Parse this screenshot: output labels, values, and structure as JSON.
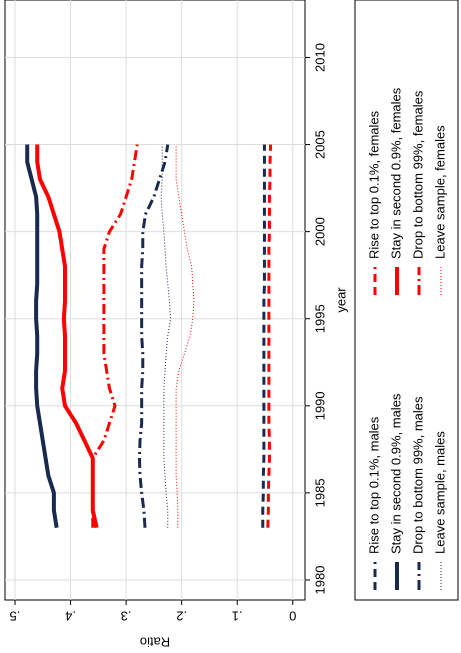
{
  "chart_data": {
    "type": "line",
    "x_label": "year",
    "y_label": "Ratio",
    "x": [
      1983,
      1984,
      1985,
      1986,
      1987,
      1988,
      1989,
      1990,
      1991,
      1992,
      1993,
      1994,
      1995,
      1996,
      1997,
      1998,
      1999,
      2000,
      2001,
      2002,
      2003,
      2004,
      2005
    ],
    "series": [
      {
        "name": "Rise to top 0.1%, males",
        "color": "#1a2a4f",
        "style": "dash",
        "values": [
          0.054,
          0.054,
          0.053,
          0.053,
          0.052,
          0.052,
          0.052,
          0.052,
          0.052,
          0.052,
          0.052,
          0.052,
          0.052,
          0.052,
          0.051,
          0.051,
          0.051,
          0.051,
          0.051,
          0.051,
          0.051,
          0.051,
          0.051
        ]
      },
      {
        "name": "Rise to top 0.1%, females",
        "color": "#ff0000",
        "style": "dash",
        "values": [
          0.045,
          0.044,
          0.044,
          0.043,
          0.042,
          0.042,
          0.043,
          0.043,
          0.043,
          0.043,
          0.043,
          0.043,
          0.043,
          0.043,
          0.043,
          0.043,
          0.043,
          0.042,
          0.042,
          0.042,
          0.041,
          0.041,
          0.04
        ]
      },
      {
        "name": "Stay in second 0.9%, males",
        "color": "#1a2a4f",
        "style": "solid",
        "values": [
          0.425,
          0.43,
          0.43,
          0.44,
          0.445,
          0.45,
          0.455,
          0.46,
          0.462,
          0.462,
          0.46,
          0.46,
          0.462,
          0.462,
          0.46,
          0.46,
          0.46,
          0.46,
          0.46,
          0.462,
          0.47,
          0.478,
          0.478
        ]
      },
      {
        "name": "Stay in second 0.9%, females",
        "color": "#ff0000",
        "style": "solid",
        "values": [
          0.353,
          0.36,
          0.36,
          0.36,
          0.36,
          0.375,
          0.39,
          0.41,
          0.415,
          0.41,
          0.41,
          0.41,
          0.412,
          0.41,
          0.41,
          0.41,
          0.415,
          0.42,
          0.43,
          0.44,
          0.455,
          0.46,
          0.46
        ]
      },
      {
        "name": "Drop to bottom 99%, males",
        "color": "#1a2a4f",
        "style": "dashdot",
        "values": [
          0.266,
          0.268,
          0.272,
          0.275,
          0.276,
          0.275,
          0.272,
          0.272,
          0.272,
          0.27,
          0.27,
          0.272,
          0.272,
          0.272,
          0.272,
          0.272,
          0.27,
          0.27,
          0.265,
          0.25,
          0.24,
          0.23,
          0.225
        ]
      },
      {
        "name": "Drop to bottom 99%, females",
        "color": "#ff0000",
        "style": "dashdot",
        "values": [
          0.36,
          0.36,
          0.36,
          0.36,
          0.36,
          0.34,
          0.33,
          0.32,
          0.33,
          0.335,
          0.34,
          0.34,
          0.34,
          0.34,
          0.34,
          0.34,
          0.34,
          0.33,
          0.31,
          0.3,
          0.29,
          0.285,
          0.28
        ]
      },
      {
        "name": "Leave sample, males",
        "color": "#1a2a4f",
        "style": "dot",
        "values": [
          0.225,
          0.225,
          0.228,
          0.23,
          0.232,
          0.232,
          0.232,
          0.232,
          0.232,
          0.23,
          0.228,
          0.225,
          0.22,
          0.222,
          0.225,
          0.228,
          0.23,
          0.232,
          0.235,
          0.237,
          0.235,
          0.235,
          0.235
        ]
      },
      {
        "name": "Leave sample, females",
        "color": "#ff0000",
        "style": "dot",
        "values": [
          0.207,
          0.207,
          0.208,
          0.21,
          0.21,
          0.21,
          0.21,
          0.21,
          0.21,
          0.205,
          0.195,
          0.185,
          0.18,
          0.178,
          0.18,
          0.182,
          0.19,
          0.195,
          0.2,
          0.205,
          0.21,
          0.21,
          0.21
        ]
      }
    ],
    "xlim": [
      1978.85,
      2013.3
    ],
    "xticks": [
      1980,
      1985,
      1990,
      1995,
      2000,
      2005,
      2010
    ],
    "ylim": [
      -0.022,
      0.518
    ],
    "yticks": [
      0,
      {
        "value": 0.1,
        "label": ".1"
      },
      {
        "value": 0.2,
        "label": ".2"
      },
      {
        "value": 0.3,
        "label": ".3"
      },
      {
        "value": 0.4,
        "label": ".4"
      },
      {
        "value": 0.5,
        "label": ".5"
      }
    ],
    "grid": true
  }
}
